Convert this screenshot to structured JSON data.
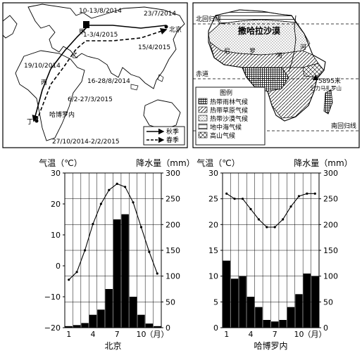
{
  "map1": {
    "labels": {
      "beijing": "北京",
      "harbin_lbl": "哈博罗内",
      "d1": "10-13/8/2014",
      "d2": "23/7/2014",
      "d3": "1-3/4/2015",
      "d4": "15/4/2015",
      "d5": "19/10/2014",
      "d6": "16-28/8/2014",
      "d7": "6/2-27/3/2015",
      "d8": "27/10/2014-2/2/2015",
      "p_jia": "甲",
      "p_yi": "乙",
      "p_bing": "丙",
      "p_ding": "丁"
    },
    "legend": {
      "autumn": "秋季",
      "spring": "春季"
    }
  },
  "map2": {
    "labels": {
      "north_tropic": "北回归线",
      "south_tropic": "南回归线",
      "equator": "赤道",
      "desert": "撒哈拉沙漠",
      "ni": "尼",
      "luo": "罗",
      "he": "河",
      "river": "河",
      "kili_h": "5895米",
      "kili": "乞力马扎罗山"
    },
    "legend": {
      "title": "图例",
      "items": [
        "热带雨林气候",
        "热带草原气候",
        "热带沙漠气候",
        "地中海气候",
        "高山气候"
      ]
    }
  },
  "chart_data": [
    {
      "type": "bar+line",
      "title": "北京",
      "ylabel_left": "气温（℃）",
      "ylabel_right": "降水量（mm）",
      "xlabel": "（月）",
      "x": [
        1,
        2,
        3,
        4,
        5,
        6,
        7,
        8,
        9,
        10,
        11,
        12
      ],
      "xticks": [
        "1",
        "4",
        "7",
        "10"
      ],
      "temp_ylim": [
        -20,
        30
      ],
      "temp_yticks": [
        -20,
        -10,
        0,
        10,
        20,
        30
      ],
      "precip_ylim": [
        0,
        300
      ],
      "precip_yticks": [
        0,
        50,
        100,
        150,
        200,
        250,
        300
      ],
      "temperature": [
        -4.5,
        -2,
        5,
        13.5,
        20,
        24.5,
        26.5,
        25.5,
        20.5,
        12.5,
        4.5,
        -2.5
      ],
      "precipitation": [
        3,
        5,
        9,
        25,
        35,
        75,
        210,
        220,
        60,
        25,
        8,
        3
      ]
    },
    {
      "type": "bar+line",
      "title": "哈博罗内",
      "ylabel_left": "气温（℃）",
      "ylabel_right": "降水量（mm）",
      "xlabel": "（月）",
      "x": [
        1,
        2,
        3,
        4,
        5,
        6,
        7,
        8,
        9,
        10,
        11,
        12
      ],
      "xticks": [
        "1",
        "4",
        "7",
        "10"
      ],
      "temp_ylim": [
        0,
        30
      ],
      "temp_yticks": [
        0,
        5,
        10,
        15,
        20,
        25,
        30
      ],
      "precip_ylim": [
        0,
        300
      ],
      "precip_yticks": [
        0,
        50,
        100,
        150,
        200,
        250,
        300
      ],
      "temperature": [
        26,
        25,
        25,
        23,
        21,
        19.5,
        19.5,
        21,
        23.5,
        25.5,
        26,
        26
      ],
      "precipitation": [
        130,
        95,
        100,
        60,
        40,
        15,
        12,
        15,
        40,
        65,
        105,
        100
      ]
    }
  ]
}
